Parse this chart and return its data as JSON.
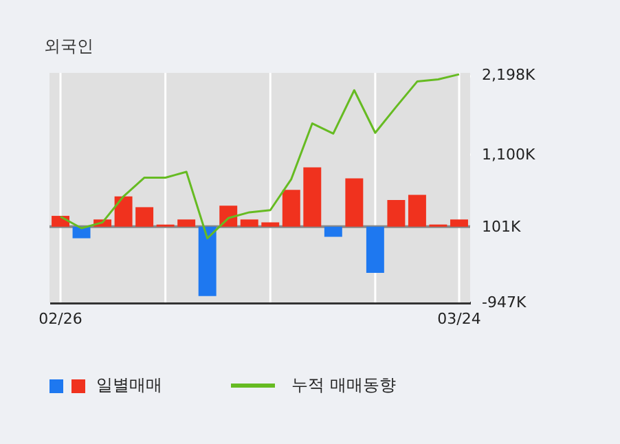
{
  "chart_data": {
    "type": "bar",
    "title": "외국인",
    "categories": [
      "02/26",
      null,
      null,
      null,
      null,
      null,
      null,
      null,
      null,
      null,
      null,
      null,
      null,
      null,
      null,
      null,
      null,
      null,
      null,
      "03/24"
    ],
    "series": [
      {
        "name": "일별매매",
        "base": [
          101,
          101,
          101,
          101,
          101,
          101,
          101,
          101,
          101,
          101,
          101,
          101,
          101,
          101,
          101,
          101,
          101,
          101,
          101,
          101
        ],
        "values": [
          150,
          -160,
          100,
          420,
          270,
          30,
          100,
          -960,
          290,
          100,
          60,
          510,
          820,
          -140,
          670,
          -640,
          370,
          440,
          30,
          100
        ],
        "colors": [
          "#f0321e",
          "#1e78f0",
          "#f0321e",
          "#f0321e",
          "#f0321e",
          "#f0321e",
          "#f0321e",
          "#1e78f0",
          "#f0321e",
          "#f0321e",
          "#f0321e",
          "#f0321e",
          "#f0321e",
          "#1e78f0",
          "#f0321e",
          "#1e78f0",
          "#f0321e",
          "#f0321e",
          "#f0321e",
          "#f0321e"
        ]
      },
      {
        "name": "누적 매매동향",
        "type": "line",
        "color": "#66bb22",
        "values": [
          240,
          80,
          160,
          520,
          780,
          780,
          860,
          -60,
          220,
          300,
          330,
          760,
          1530,
          1390,
          1990,
          1400,
          1760,
          2110,
          2140,
          2210
        ]
      }
    ],
    "ylim": [
      -947,
      2230
    ],
    "yticks": [
      {
        "value": -947,
        "label": "-947K"
      },
      {
        "value": 101,
        "label": "101K"
      },
      {
        "value": 1100,
        "label": "1,100K"
      },
      {
        "value": 2198,
        "label": "2,198K"
      }
    ],
    "ref_lines": [
      {
        "axis": "y",
        "value": 101,
        "color": "#888888"
      }
    ],
    "grid": true,
    "legend": "bottom"
  }
}
